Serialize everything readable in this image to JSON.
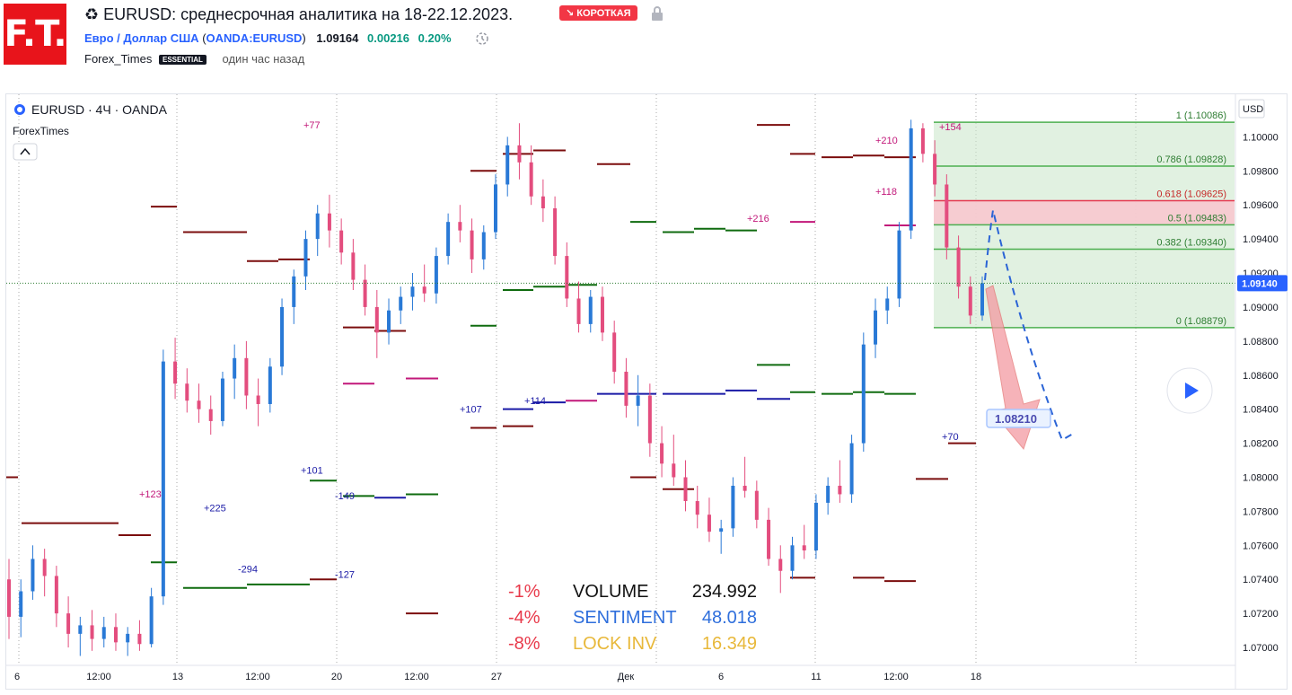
{
  "header": {
    "logo_text": "F.T.",
    "title": "♻ EURUSD: среднесрочная аналитика на 18-22.12.2023.",
    "badge": "↘ КОРОТКАЯ",
    "symbol_name": "Евро / Доллар США",
    "symbol_code": "OANDA:EURUSD",
    "price": "1.09164",
    "change": "0.00216",
    "change_pct": "0.20%",
    "author": "Forex_Times",
    "author_badge": "ESSENTIAL",
    "time_ago": "один час назад"
  },
  "legend": {
    "symbol": "EURUSD · 4Ч · OANDA",
    "indicator": "ForexTimes",
    "collapse": "^"
  },
  "colors": {
    "up": "#2979d6",
    "down": "#e34d7e",
    "maroon": "#7b0d0d",
    "green": "#0f6b0f",
    "navy": "#1a1aa6",
    "magenta": "#c2187a",
    "fib_green": "#4caf50",
    "fib_red": "#e53950",
    "axis_badge": "#2962ff"
  },
  "chart_data": {
    "type": "candlestick",
    "currency": "USD",
    "current_price": "1.09140",
    "ylim": [
      1.069,
      1.1025
    ],
    "y_ticks": [
      "1.10000",
      "1.09800",
      "1.09600",
      "1.09400",
      "1.09200",
      "1.09000",
      "1.08800",
      "1.08600",
      "1.08400",
      "1.08200",
      "1.08000",
      "1.07800",
      "1.07600",
      "1.07400",
      "1.07200",
      "1.07000"
    ],
    "x_ticks": [
      "6",
      "12:00",
      "13",
      "12:00",
      "20",
      "12:00",
      "27",
      "Дек",
      "6",
      "11",
      "12:00",
      "18"
    ],
    "fibonacci": [
      {
        "label": "1 (1.10086)",
        "price": 1.10086
      },
      {
        "label": "0.786 (1.09828)",
        "price": 1.09828
      },
      {
        "label": "0.618 (1.09625)",
        "price": 1.09625
      },
      {
        "label": "0.5 (1.09483)",
        "price": 1.09483
      },
      {
        "label": "0.382 (1.09340)",
        "price": 1.0934
      },
      {
        "label": "0 (1.08879)",
        "price": 1.08879
      }
    ],
    "target_label": "1.08210",
    "level_labels": [
      {
        "text": "+77",
        "color": "magenta"
      },
      {
        "text": "+123",
        "color": "magenta"
      },
      {
        "text": "+225",
        "color": "navy"
      },
      {
        "text": "-294",
        "color": "navy"
      },
      {
        "text": "+101",
        "color": "navy"
      },
      {
        "text": "-149",
        "color": "navy"
      },
      {
        "text": "-127",
        "color": "navy"
      },
      {
        "text": "+107",
        "color": "navy"
      },
      {
        "text": "+114",
        "color": "navy"
      },
      {
        "text": "+216",
        "color": "magenta"
      },
      {
        "text": "+210",
        "color": "magenta"
      },
      {
        "text": "+154",
        "color": "magenta"
      },
      {
        "text": "+118",
        "color": "magenta"
      },
      {
        "text": "+70",
        "color": "navy"
      }
    ],
    "stats": [
      {
        "pct": "-1%",
        "name": "VOLUME",
        "value": "234.992",
        "color": "#111111"
      },
      {
        "pct": "-4%",
        "name": "SENTIMENT",
        "value": "48.018",
        "color": "#2f6fdc"
      },
      {
        "pct": "-8%",
        "name": "LOCK INV",
        "value": "16.349",
        "color": "#e8b83a"
      }
    ],
    "candles": [
      [
        1.074,
        1.0752,
        1.0705,
        1.0718
      ],
      [
        1.0718,
        1.074,
        1.0706,
        1.0733
      ],
      [
        1.0733,
        1.076,
        1.0728,
        1.0752
      ],
      [
        1.0752,
        1.0758,
        1.073,
        1.0742
      ],
      [
        1.0742,
        1.0748,
        1.0712,
        1.072
      ],
      [
        1.072,
        1.073,
        1.07,
        1.0708
      ],
      [
        1.0708,
        1.0718,
        1.0695,
        1.0713
      ],
      [
        1.0713,
        1.0722,
        1.0698,
        1.0705
      ],
      [
        1.0705,
        1.0718,
        1.07,
        1.0712
      ],
      [
        1.0712,
        1.072,
        1.0698,
        1.0703
      ],
      [
        1.0703,
        1.0712,
        1.0695,
        1.0708
      ],
      [
        1.0708,
        1.0716,
        1.0698,
        1.0702
      ],
      [
        1.0702,
        1.0735,
        1.07,
        1.073
      ],
      [
        1.073,
        1.0875,
        1.0725,
        1.0868
      ],
      [
        1.0868,
        1.0882,
        1.0846,
        1.0855
      ],
      [
        1.0855,
        1.0864,
        1.0838,
        1.0845
      ],
      [
        1.0845,
        1.0855,
        1.0832,
        1.084
      ],
      [
        1.084,
        1.0848,
        1.0825,
        1.0833
      ],
      [
        1.0833,
        1.0862,
        1.083,
        1.0858
      ],
      [
        1.0858,
        1.0878,
        1.0846,
        1.087
      ],
      [
        1.087,
        1.088,
        1.084,
        1.0848
      ],
      [
        1.0848,
        1.0858,
        1.083,
        1.0843
      ],
      [
        1.0843,
        1.087,
        1.0838,
        1.0865
      ],
      [
        1.0865,
        1.0905,
        1.086,
        1.09
      ],
      [
        1.09,
        1.0922,
        1.089,
        1.0918
      ],
      [
        1.0918,
        1.0945,
        1.091,
        1.094
      ],
      [
        1.094,
        1.096,
        1.093,
        1.0955
      ],
      [
        1.0955,
        1.0966,
        1.0935,
        1.0945
      ],
      [
        1.0945,
        1.0952,
        1.0925,
        1.0932
      ],
      [
        1.0932,
        1.094,
        1.091,
        1.0916
      ],
      [
        1.0916,
        1.0925,
        1.0895,
        1.09
      ],
      [
        1.09,
        1.091,
        1.087,
        1.0885
      ],
      [
        1.0885,
        1.0905,
        1.0878,
        1.0898
      ],
      [
        1.0898,
        1.0912,
        1.089,
        1.0906
      ],
      [
        1.0906,
        1.092,
        1.0898,
        1.0912
      ],
      [
        1.0912,
        1.0925,
        1.0903,
        1.0908
      ],
      [
        1.0908,
        1.0935,
        1.0902,
        1.093
      ],
      [
        1.093,
        1.0955,
        1.0925,
        1.095
      ],
      [
        1.095,
        1.096,
        1.0938,
        1.0945
      ],
      [
        1.0945,
        1.0952,
        1.092,
        1.0928
      ],
      [
        1.0928,
        1.0948,
        1.0922,
        1.0944
      ],
      [
        1.0944,
        1.0978,
        1.094,
        1.0972
      ],
      [
        1.0972,
        1.1,
        1.0965,
        1.0995
      ],
      [
        1.0995,
        1.1008,
        1.0975,
        1.0985
      ],
      [
        1.0985,
        1.0995,
        1.096,
        1.0965
      ],
      [
        1.0965,
        1.0975,
        1.095,
        1.0958
      ],
      [
        1.0958,
        1.0965,
        1.0925,
        1.093
      ],
      [
        1.093,
        1.0938,
        1.09,
        1.0905
      ],
      [
        1.0905,
        1.0915,
        1.0885,
        1.089
      ],
      [
        1.089,
        1.091,
        1.0885,
        1.0906
      ],
      [
        1.0906,
        1.0912,
        1.088,
        1.0885
      ],
      [
        1.0885,
        1.0892,
        1.0855,
        1.0862
      ],
      [
        1.0862,
        1.087,
        1.0835,
        1.0842
      ],
      [
        1.0842,
        1.086,
        1.083,
        1.0848
      ],
      [
        1.0848,
        1.0855,
        1.0812,
        1.082
      ],
      [
        1.082,
        1.083,
        1.08,
        1.0808
      ],
      [
        1.0808,
        1.0825,
        1.0795,
        1.08
      ],
      [
        1.08,
        1.081,
        1.078,
        1.0786
      ],
      [
        1.0786,
        1.0795,
        1.077,
        1.0778
      ],
      [
        1.0778,
        1.0788,
        1.0762,
        1.0768
      ],
      [
        1.0768,
        1.0775,
        1.0755,
        1.077
      ],
      [
        1.077,
        1.08,
        1.0765,
        1.0795
      ],
      [
        1.0795,
        1.0812,
        1.0788,
        1.0792
      ],
      [
        1.0792,
        1.0798,
        1.077,
        1.0775
      ],
      [
        1.0775,
        1.0782,
        1.0748,
        1.0752
      ],
      [
        1.0752,
        1.076,
        1.0732,
        1.0745
      ],
      [
        1.0745,
        1.0765,
        1.074,
        1.076
      ],
      [
        1.076,
        1.0772,
        1.0752,
        1.0757
      ],
      [
        1.0757,
        1.079,
        1.0752,
        1.0785
      ],
      [
        1.0785,
        1.08,
        1.0778,
        1.0795
      ],
      [
        1.0795,
        1.081,
        1.0785,
        1.079
      ],
      [
        1.079,
        1.0825,
        1.0785,
        1.082
      ],
      [
        1.082,
        1.0885,
        1.0815,
        1.0878
      ],
      [
        1.0878,
        1.0905,
        1.087,
        1.0898
      ],
      [
        1.0898,
        1.0912,
        1.089,
        1.0905
      ],
      [
        1.0905,
        1.095,
        1.09,
        1.0945
      ],
      [
        1.0945,
        1.101,
        1.094,
        1.1005
      ],
      [
        1.1005,
        1.1008,
        1.0985,
        1.099
      ],
      [
        1.099,
        1.0998,
        1.0965,
        1.0972
      ],
      [
        1.0972,
        1.0978,
        1.0928,
        1.0935
      ],
      [
        1.0935,
        1.0942,
        1.0905,
        1.0912
      ],
      [
        1.0912,
        1.0918,
        1.089,
        1.0895
      ],
      [
        1.0895,
        1.0918,
        1.0892,
        1.0914
      ]
    ]
  }
}
